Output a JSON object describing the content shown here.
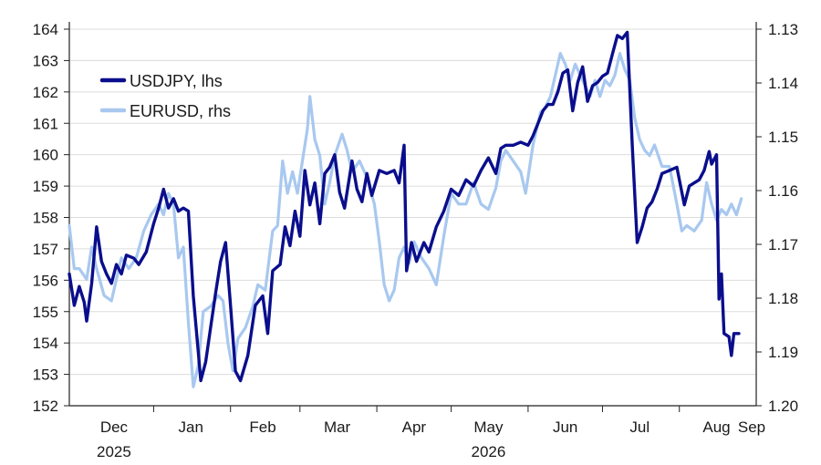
{
  "chart_data": {
    "type": "line",
    "title": "",
    "left_axis": {
      "label": "",
      "range": [
        152,
        164
      ],
      "ticks": [
        152,
        153,
        154,
        155,
        156,
        157,
        158,
        159,
        160,
        161,
        162,
        163,
        164
      ]
    },
    "right_axis": {
      "label": "",
      "inverted": true,
      "range": [
        1.13,
        1.2
      ],
      "ticks": [
        "1.13",
        "1.14",
        "1.15",
        "1.16",
        "1.17",
        "1.18",
        "1.19",
        "1.20"
      ]
    },
    "x_axis": {
      "range": [
        "2025-11-28",
        "2026-09-01"
      ],
      "months": [
        {
          "label": "Dec",
          "year": "2025",
          "start": "2025-12-01",
          "mid": "2025-12-16"
        },
        {
          "label": "Jan",
          "year": "",
          "start": "2026-01-01",
          "mid": "2026-01-16"
        },
        {
          "label": "Feb",
          "year": "",
          "start": "2026-02-01",
          "mid": "2026-02-14"
        },
        {
          "label": "Mar",
          "year": "",
          "start": "2026-03-01",
          "mid": "2026-03-16"
        },
        {
          "label": "Apr",
          "year": "",
          "start": "2026-04-01",
          "mid": "2026-04-16"
        },
        {
          "label": "May",
          "year": "2026",
          "start": "2026-05-01",
          "mid": "2026-05-16"
        },
        {
          "label": "Jun",
          "year": "",
          "start": "2026-06-01",
          "mid": "2026-06-16"
        },
        {
          "label": "Jul",
          "year": "",
          "start": "2026-07-01",
          "mid": "2026-07-16"
        },
        {
          "label": "Aug",
          "year": "",
          "start": "2026-08-01",
          "mid": "2026-08-16"
        },
        {
          "label": "Sep",
          "year": "",
          "start": "2026-09-01",
          "mid": "2026-09-01"
        }
      ]
    },
    "legend": {
      "position": "top-left"
    },
    "series": [
      {
        "name": "USDJPY, lhs",
        "axis": "left",
        "color": "#0a0e8c",
        "points": [
          [
            "2025-11-28",
            156.2
          ],
          [
            "2025-11-30",
            155.2
          ],
          [
            "2025-12-02",
            155.8
          ],
          [
            "2025-12-04",
            155.3
          ],
          [
            "2025-12-05",
            154.7
          ],
          [
            "2025-12-07",
            155.9
          ],
          [
            "2025-12-09",
            157.7
          ],
          [
            "2025-12-11",
            156.6
          ],
          [
            "2025-12-13",
            156.2
          ],
          [
            "2025-12-15",
            155.9
          ],
          [
            "2025-12-17",
            156.5
          ],
          [
            "2025-12-19",
            156.2
          ],
          [
            "2025-12-21",
            156.8
          ],
          [
            "2025-12-24",
            156.7
          ],
          [
            "2025-12-26",
            156.5
          ],
          [
            "2025-12-29",
            156.9
          ],
          [
            "2026-01-01",
            157.8
          ],
          [
            "2026-01-03",
            158.3
          ],
          [
            "2026-01-05",
            158.9
          ],
          [
            "2026-01-07",
            158.3
          ],
          [
            "2026-01-09",
            158.6
          ],
          [
            "2026-01-11",
            158.2
          ],
          [
            "2026-01-13",
            158.3
          ],
          [
            "2026-01-15",
            158.2
          ],
          [
            "2026-01-17",
            155.5
          ],
          [
            "2026-01-19",
            153.7
          ],
          [
            "2026-01-20",
            152.8
          ],
          [
            "2026-01-22",
            153.4
          ],
          [
            "2026-01-24",
            154.5
          ],
          [
            "2026-01-26",
            155.6
          ],
          [
            "2026-01-28",
            156.6
          ],
          [
            "2026-01-30",
            157.2
          ],
          [
            "2026-02-01",
            155.2
          ],
          [
            "2026-02-03",
            153.1
          ],
          [
            "2026-02-05",
            152.8
          ],
          [
            "2026-02-08",
            153.6
          ],
          [
            "2026-02-11",
            155.2
          ],
          [
            "2026-02-14",
            155.5
          ],
          [
            "2026-02-16",
            154.3
          ],
          [
            "2026-02-18",
            156.3
          ],
          [
            "2026-02-21",
            156.5
          ],
          [
            "2026-02-23",
            157.7
          ],
          [
            "2026-02-25",
            157.1
          ],
          [
            "2026-02-27",
            158.2
          ],
          [
            "2026-03-01",
            157.4
          ],
          [
            "2026-03-03",
            159.5
          ],
          [
            "2026-03-05",
            158.4
          ],
          [
            "2026-03-07",
            159.1
          ],
          [
            "2026-03-09",
            157.8
          ],
          [
            "2026-03-11",
            159.4
          ],
          [
            "2026-03-13",
            159.6
          ],
          [
            "2026-03-15",
            160.0
          ],
          [
            "2026-03-17",
            158.8
          ],
          [
            "2026-03-19",
            158.3
          ],
          [
            "2026-03-22",
            159.8
          ],
          [
            "2026-03-24",
            158.9
          ],
          [
            "2026-03-26",
            158.5
          ],
          [
            "2026-03-28",
            159.4
          ],
          [
            "2026-03-30",
            158.7
          ],
          [
            "2026-04-02",
            159.5
          ],
          [
            "2026-04-05",
            159.4
          ],
          [
            "2026-04-08",
            159.5
          ],
          [
            "2026-04-10",
            159.1
          ],
          [
            "2026-04-12",
            160.3
          ],
          [
            "2026-04-13",
            156.3
          ],
          [
            "2026-04-15",
            157.2
          ],
          [
            "2026-04-17",
            156.6
          ],
          [
            "2026-04-20",
            157.2
          ],
          [
            "2026-04-22",
            156.9
          ],
          [
            "2026-04-25",
            157.7
          ],
          [
            "2026-04-28",
            158.2
          ],
          [
            "2026-05-01",
            158.9
          ],
          [
            "2026-05-04",
            158.7
          ],
          [
            "2026-05-07",
            159.2
          ],
          [
            "2026-05-10",
            159.0
          ],
          [
            "2026-05-13",
            159.5
          ],
          [
            "2026-05-16",
            159.9
          ],
          [
            "2026-05-19",
            159.4
          ],
          [
            "2026-05-21",
            160.2
          ],
          [
            "2026-05-23",
            160.3
          ],
          [
            "2026-05-26",
            160.3
          ],
          [
            "2026-05-29",
            160.4
          ],
          [
            "2026-06-01",
            160.3
          ],
          [
            "2026-06-03",
            160.6
          ],
          [
            "2026-06-05",
            161.0
          ],
          [
            "2026-06-07",
            161.4
          ],
          [
            "2026-06-09",
            161.6
          ],
          [
            "2026-06-11",
            161.6
          ],
          [
            "2026-06-13",
            162.0
          ],
          [
            "2026-06-15",
            162.6
          ],
          [
            "2026-06-17",
            162.7
          ],
          [
            "2026-06-19",
            161.4
          ],
          [
            "2026-06-21",
            162.3
          ],
          [
            "2026-06-23",
            162.8
          ],
          [
            "2026-06-25",
            161.7
          ],
          [
            "2026-06-27",
            162.2
          ],
          [
            "2026-06-29",
            162.3
          ],
          [
            "2026-07-01",
            162.5
          ],
          [
            "2026-07-03",
            162.6
          ],
          [
            "2026-07-05",
            163.2
          ],
          [
            "2026-07-07",
            163.8
          ],
          [
            "2026-07-09",
            163.7
          ],
          [
            "2026-07-11",
            163.9
          ],
          [
            "2026-07-13",
            160.3
          ],
          [
            "2026-07-15",
            157.2
          ],
          [
            "2026-07-17",
            157.7
          ],
          [
            "2026-07-19",
            158.3
          ],
          [
            "2026-07-21",
            158.5
          ],
          [
            "2026-07-23",
            158.9
          ],
          [
            "2026-07-25",
            159.4
          ],
          [
            "2026-07-28",
            159.5
          ],
          [
            "2026-07-31",
            159.6
          ],
          [
            "2026-08-03",
            158.4
          ],
          [
            "2026-08-05",
            159.0
          ],
          [
            "2026-08-07",
            159.1
          ],
          [
            "2026-08-09",
            159.2
          ],
          [
            "2026-08-11",
            159.5
          ],
          [
            "2026-08-13",
            160.1
          ],
          [
            "2026-08-14",
            159.7
          ],
          [
            "2026-08-16",
            160.0
          ],
          [
            "2026-08-17",
            155.4
          ],
          [
            "2026-08-18",
            156.2
          ],
          [
            "2026-08-19",
            154.3
          ],
          [
            "2026-08-21",
            154.2
          ],
          [
            "2026-08-22",
            153.6
          ],
          [
            "2026-08-23",
            154.3
          ],
          [
            "2026-08-25",
            154.3
          ]
        ]
      },
      {
        "name": "EURUSD, rhs",
        "axis": "right",
        "color": "#a8c8ef",
        "points": [
          [
            "2025-11-28",
            1.1665
          ],
          [
            "2025-11-30",
            1.1745
          ],
          [
            "2025-12-02",
            1.1745
          ],
          [
            "2025-12-05",
            1.1765
          ],
          [
            "2025-12-07",
            1.1705
          ],
          [
            "2025-12-09",
            1.1745
          ],
          [
            "2025-12-12",
            1.1795
          ],
          [
            "2025-12-15",
            1.1805
          ],
          [
            "2025-12-17",
            1.1765
          ],
          [
            "2025-12-19",
            1.1725
          ],
          [
            "2025-12-22",
            1.1745
          ],
          [
            "2025-12-25",
            1.1725
          ],
          [
            "2025-12-28",
            1.1675
          ],
          [
            "2025-12-31",
            1.1645
          ],
          [
            "2026-01-03",
            1.1625
          ],
          [
            "2026-01-05",
            1.1645
          ],
          [
            "2026-01-07",
            1.1605
          ],
          [
            "2026-01-09",
            1.1625
          ],
          [
            "2026-01-11",
            1.1725
          ],
          [
            "2026-01-13",
            1.1705
          ],
          [
            "2026-01-15",
            1.1845
          ],
          [
            "2026-01-17",
            1.1965
          ],
          [
            "2026-01-19",
            1.1925
          ],
          [
            "2026-01-21",
            1.1825
          ],
          [
            "2026-01-24",
            1.1815
          ],
          [
            "2026-01-27",
            1.1795
          ],
          [
            "2026-01-29",
            1.1805
          ],
          [
            "2026-01-31",
            1.1885
          ],
          [
            "2026-02-02",
            1.1935
          ],
          [
            "2026-02-04",
            1.1875
          ],
          [
            "2026-02-07",
            1.1855
          ],
          [
            "2026-02-10",
            1.1815
          ],
          [
            "2026-02-12",
            1.1775
          ],
          [
            "2026-02-15",
            1.1785
          ],
          [
            "2026-02-18",
            1.1675
          ],
          [
            "2026-02-20",
            1.1665
          ],
          [
            "2026-02-22",
            1.1545
          ],
          [
            "2026-02-24",
            1.1605
          ],
          [
            "2026-02-26",
            1.1565
          ],
          [
            "2026-02-28",
            1.1605
          ],
          [
            "2026-03-02",
            1.1545
          ],
          [
            "2026-03-04",
            1.1485
          ],
          [
            "2026-03-05",
            1.1425
          ],
          [
            "2026-03-07",
            1.1505
          ],
          [
            "2026-03-09",
            1.1535
          ],
          [
            "2026-03-11",
            1.1625
          ],
          [
            "2026-03-13",
            1.1585
          ],
          [
            "2026-03-15",
            1.1535
          ],
          [
            "2026-03-18",
            1.1495
          ],
          [
            "2026-03-20",
            1.1525
          ],
          [
            "2026-03-22",
            1.1565
          ],
          [
            "2026-03-25",
            1.1545
          ],
          [
            "2026-03-28",
            1.1575
          ],
          [
            "2026-03-31",
            1.1625
          ],
          [
            "2026-04-02",
            1.1695
          ],
          [
            "2026-04-04",
            1.1775
          ],
          [
            "2026-04-06",
            1.1805
          ],
          [
            "2026-04-08",
            1.1785
          ],
          [
            "2026-04-10",
            1.1725
          ],
          [
            "2026-04-12",
            1.1705
          ],
          [
            "2026-04-14",
            1.1735
          ],
          [
            "2026-04-16",
            1.1695
          ],
          [
            "2026-04-19",
            1.1725
          ],
          [
            "2026-04-22",
            1.1745
          ],
          [
            "2026-04-25",
            1.1775
          ],
          [
            "2026-04-28",
            1.1685
          ],
          [
            "2026-05-01",
            1.1605
          ],
          [
            "2026-05-04",
            1.1625
          ],
          [
            "2026-05-07",
            1.1625
          ],
          [
            "2026-05-10",
            1.1585
          ],
          [
            "2026-05-13",
            1.1625
          ],
          [
            "2026-05-16",
            1.1635
          ],
          [
            "2026-05-19",
            1.1595
          ],
          [
            "2026-05-21",
            1.1545
          ],
          [
            "2026-05-23",
            1.1525
          ],
          [
            "2026-05-26",
            1.1545
          ],
          [
            "2026-05-29",
            1.1565
          ],
          [
            "2026-05-31",
            1.1605
          ],
          [
            "2026-06-03",
            1.1515
          ],
          [
            "2026-06-06",
            1.1455
          ],
          [
            "2026-06-08",
            1.1445
          ],
          [
            "2026-06-10",
            1.1425
          ],
          [
            "2026-06-12",
            1.1385
          ],
          [
            "2026-06-14",
            1.1345
          ],
          [
            "2026-06-16",
            1.1365
          ],
          [
            "2026-06-18",
            1.1395
          ],
          [
            "2026-06-20",
            1.1365
          ],
          [
            "2026-06-22",
            1.1385
          ],
          [
            "2026-06-24",
            1.1405
          ],
          [
            "2026-06-26",
            1.1425
          ],
          [
            "2026-06-28",
            1.1395
          ],
          [
            "2026-06-30",
            1.1425
          ],
          [
            "2026-07-02",
            1.1395
          ],
          [
            "2026-07-04",
            1.1405
          ],
          [
            "2026-07-06",
            1.1385
          ],
          [
            "2026-07-08",
            1.1345
          ],
          [
            "2026-07-10",
            1.1375
          ],
          [
            "2026-07-12",
            1.1395
          ],
          [
            "2026-07-14",
            1.1465
          ],
          [
            "2026-07-16",
            1.1505
          ],
          [
            "2026-07-18",
            1.1525
          ],
          [
            "2026-07-20",
            1.1535
          ],
          [
            "2026-07-22",
            1.1515
          ],
          [
            "2026-07-25",
            1.1555
          ],
          [
            "2026-07-28",
            1.1555
          ],
          [
            "2026-07-31",
            1.1625
          ],
          [
            "2026-08-02",
            1.1675
          ],
          [
            "2026-08-04",
            1.1665
          ],
          [
            "2026-08-07",
            1.1675
          ],
          [
            "2026-08-10",
            1.1655
          ],
          [
            "2026-08-12",
            1.1585
          ],
          [
            "2026-08-14",
            1.1625
          ],
          [
            "2026-08-16",
            1.1655
          ],
          [
            "2026-08-18",
            1.1635
          ],
          [
            "2026-08-20",
            1.1645
          ],
          [
            "2026-08-22",
            1.1625
          ],
          [
            "2026-08-24",
            1.1645
          ],
          [
            "2026-08-26",
            1.1615
          ]
        ]
      }
    ]
  }
}
